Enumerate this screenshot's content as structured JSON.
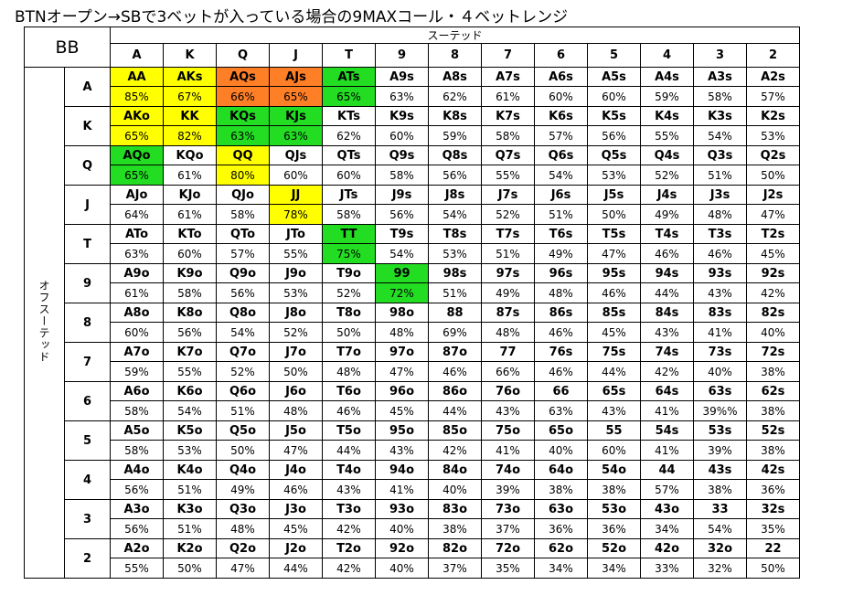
{
  "title": "BTNオープン→SBで3ベットが入っている場合の9MAXコール・４ベットレンジ",
  "corner_label": "BB",
  "suited_label": "スーテッド",
  "offsuit_label": "オフスーテッド",
  "ranks": [
    "A",
    "K",
    "Q",
    "J",
    "T",
    "9",
    "8",
    "7",
    "6",
    "5",
    "4",
    "3",
    "2"
  ],
  "colors": {
    "y": "#ffff00",
    "o": "#ff7f27",
    "g": "#22dd22"
  },
  "rows": [
    {
      "rank": "A",
      "cells": [
        {
          "hand": "AA",
          "pct": "85%",
          "color": "y"
        },
        {
          "hand": "AKs",
          "pct": "67%",
          "color": "y"
        },
        {
          "hand": "AQs",
          "pct": "66%",
          "color": "o"
        },
        {
          "hand": "AJs",
          "pct": "65%",
          "color": "o"
        },
        {
          "hand": "ATs",
          "pct": "65%",
          "color": "g"
        },
        {
          "hand": "A9s",
          "pct": "63%"
        },
        {
          "hand": "A8s",
          "pct": "62%"
        },
        {
          "hand": "A7s",
          "pct": "61%"
        },
        {
          "hand": "A6s",
          "pct": "60%"
        },
        {
          "hand": "A5s",
          "pct": "60%"
        },
        {
          "hand": "A4s",
          "pct": "59%"
        },
        {
          "hand": "A3s",
          "pct": "58%"
        },
        {
          "hand": "A2s",
          "pct": "57%"
        }
      ]
    },
    {
      "rank": "K",
      "cells": [
        {
          "hand": "AKo",
          "pct": "65%",
          "color": "y"
        },
        {
          "hand": "KK",
          "pct": "82%",
          "color": "y"
        },
        {
          "hand": "KQs",
          "pct": "63%",
          "color": "g"
        },
        {
          "hand": "KJs",
          "pct": "63%",
          "color": "g"
        },
        {
          "hand": "KTs",
          "pct": "62%"
        },
        {
          "hand": "K9s",
          "pct": "60%"
        },
        {
          "hand": "K8s",
          "pct": "59%"
        },
        {
          "hand": "K7s",
          "pct": "58%"
        },
        {
          "hand": "K6s",
          "pct": "57%"
        },
        {
          "hand": "K5s",
          "pct": "56%"
        },
        {
          "hand": "K4s",
          "pct": "55%"
        },
        {
          "hand": "K3s",
          "pct": "54%"
        },
        {
          "hand": "K2s",
          "pct": "53%"
        }
      ]
    },
    {
      "rank": "Q",
      "cells": [
        {
          "hand": "AQo",
          "pct": "65%",
          "color": "g"
        },
        {
          "hand": "KQo",
          "pct": "61%"
        },
        {
          "hand": "QQ",
          "pct": "80%",
          "color": "y"
        },
        {
          "hand": "QJs",
          "pct": "60%"
        },
        {
          "hand": "QTs",
          "pct": "60%"
        },
        {
          "hand": "Q9s",
          "pct": "58%"
        },
        {
          "hand": "Q8s",
          "pct": "56%"
        },
        {
          "hand": "Q7s",
          "pct": "55%"
        },
        {
          "hand": "Q6s",
          "pct": "54%"
        },
        {
          "hand": "Q5s",
          "pct": "53%"
        },
        {
          "hand": "Q4s",
          "pct": "52%"
        },
        {
          "hand": "Q3s",
          "pct": "51%"
        },
        {
          "hand": "Q2s",
          "pct": "50%"
        }
      ]
    },
    {
      "rank": "J",
      "cells": [
        {
          "hand": "AJo",
          "pct": "64%"
        },
        {
          "hand": "KJo",
          "pct": "61%"
        },
        {
          "hand": "QJo",
          "pct": "58%"
        },
        {
          "hand": "JJ",
          "pct": "78%",
          "color": "y"
        },
        {
          "hand": "JTs",
          "pct": "58%"
        },
        {
          "hand": "J9s",
          "pct": "56%"
        },
        {
          "hand": "J8s",
          "pct": "54%"
        },
        {
          "hand": "J7s",
          "pct": "52%"
        },
        {
          "hand": "J6s",
          "pct": "51%"
        },
        {
          "hand": "J5s",
          "pct": "50%"
        },
        {
          "hand": "J4s",
          "pct": "49%"
        },
        {
          "hand": "J3s",
          "pct": "48%"
        },
        {
          "hand": "J2s",
          "pct": "47%"
        }
      ]
    },
    {
      "rank": "T",
      "cells": [
        {
          "hand": "ATo",
          "pct": "63%"
        },
        {
          "hand": "KTo",
          "pct": "60%"
        },
        {
          "hand": "QTo",
          "pct": "57%"
        },
        {
          "hand": "JTo",
          "pct": "55%"
        },
        {
          "hand": "TT",
          "pct": "75%",
          "color": "g"
        },
        {
          "hand": "T9s",
          "pct": "54%"
        },
        {
          "hand": "T8s",
          "pct": "53%"
        },
        {
          "hand": "T7s",
          "pct": "51%"
        },
        {
          "hand": "T6s",
          "pct": "49%"
        },
        {
          "hand": "T5s",
          "pct": "47%"
        },
        {
          "hand": "T4s",
          "pct": "46%"
        },
        {
          "hand": "T3s",
          "pct": "46%"
        },
        {
          "hand": "T2s",
          "pct": "45%"
        }
      ]
    },
    {
      "rank": "9",
      "cells": [
        {
          "hand": "A9o",
          "pct": "61%"
        },
        {
          "hand": "K9o",
          "pct": "58%"
        },
        {
          "hand": "Q9o",
          "pct": "56%"
        },
        {
          "hand": "J9o",
          "pct": "53%"
        },
        {
          "hand": "T9o",
          "pct": "52%"
        },
        {
          "hand": "99",
          "pct": "72%",
          "color": "g"
        },
        {
          "hand": "98s",
          "pct": "51%"
        },
        {
          "hand": "97s",
          "pct": "49%"
        },
        {
          "hand": "96s",
          "pct": "48%"
        },
        {
          "hand": "95s",
          "pct": "46%"
        },
        {
          "hand": "94s",
          "pct": "44%"
        },
        {
          "hand": "93s",
          "pct": "43%"
        },
        {
          "hand": "92s",
          "pct": "42%"
        }
      ]
    },
    {
      "rank": "8",
      "cells": [
        {
          "hand": "A8o",
          "pct": "60%"
        },
        {
          "hand": "K8o",
          "pct": "56%"
        },
        {
          "hand": "Q8o",
          "pct": "54%"
        },
        {
          "hand": "J8o",
          "pct": "52%"
        },
        {
          "hand": "T8o",
          "pct": "50%"
        },
        {
          "hand": "98o",
          "pct": "48%"
        },
        {
          "hand": "88",
          "pct": "69%"
        },
        {
          "hand": "87s",
          "pct": "48%"
        },
        {
          "hand": "86s",
          "pct": "46%"
        },
        {
          "hand": "85s",
          "pct": "45%"
        },
        {
          "hand": "84s",
          "pct": "43%"
        },
        {
          "hand": "83s",
          "pct": "41%"
        },
        {
          "hand": "82s",
          "pct": "40%"
        }
      ]
    },
    {
      "rank": "7",
      "cells": [
        {
          "hand": "A7o",
          "pct": "59%"
        },
        {
          "hand": "K7o",
          "pct": "55%"
        },
        {
          "hand": "Q7o",
          "pct": "52%"
        },
        {
          "hand": "J7o",
          "pct": "50%"
        },
        {
          "hand": "T7o",
          "pct": "48%"
        },
        {
          "hand": "97o",
          "pct": "47%"
        },
        {
          "hand": "87o",
          "pct": "46%"
        },
        {
          "hand": "77",
          "pct": "66%"
        },
        {
          "hand": "76s",
          "pct": "46%"
        },
        {
          "hand": "75s",
          "pct": "44%"
        },
        {
          "hand": "74s",
          "pct": "42%"
        },
        {
          "hand": "73s",
          "pct": "40%"
        },
        {
          "hand": "72s",
          "pct": "38%"
        }
      ]
    },
    {
      "rank": "6",
      "cells": [
        {
          "hand": "A6o",
          "pct": "58%"
        },
        {
          "hand": "K6o",
          "pct": "54%"
        },
        {
          "hand": "Q6o",
          "pct": "51%"
        },
        {
          "hand": "J6o",
          "pct": "48%"
        },
        {
          "hand": "T6o",
          "pct": "46%"
        },
        {
          "hand": "96o",
          "pct": "45%"
        },
        {
          "hand": "86o",
          "pct": "44%"
        },
        {
          "hand": "76o",
          "pct": "43%"
        },
        {
          "hand": "66",
          "pct": "63%"
        },
        {
          "hand": "65s",
          "pct": "43%"
        },
        {
          "hand": "64s",
          "pct": "41%"
        },
        {
          "hand": "63s",
          "pct": "39%%"
        },
        {
          "hand": "62s",
          "pct": "38%"
        }
      ]
    },
    {
      "rank": "5",
      "cells": [
        {
          "hand": "A5o",
          "pct": "58%"
        },
        {
          "hand": "K5o",
          "pct": "53%"
        },
        {
          "hand": "Q5o",
          "pct": "50%"
        },
        {
          "hand": "J5o",
          "pct": "47%"
        },
        {
          "hand": "T5o",
          "pct": "44%"
        },
        {
          "hand": "95o",
          "pct": "43%"
        },
        {
          "hand": "85o",
          "pct": "42%"
        },
        {
          "hand": "75o",
          "pct": "41%"
        },
        {
          "hand": "65o",
          "pct": "40%"
        },
        {
          "hand": "55",
          "pct": "60%"
        },
        {
          "hand": "54s",
          "pct": "41%"
        },
        {
          "hand": "53s",
          "pct": "39%"
        },
        {
          "hand": "52s",
          "pct": "38%"
        }
      ]
    },
    {
      "rank": "4",
      "cells": [
        {
          "hand": "A4o",
          "pct": "56%"
        },
        {
          "hand": "K4o",
          "pct": "51%"
        },
        {
          "hand": "Q4o",
          "pct": "49%"
        },
        {
          "hand": "J4o",
          "pct": "46%"
        },
        {
          "hand": "T4o",
          "pct": "43%"
        },
        {
          "hand": "94o",
          "pct": "41%"
        },
        {
          "hand": "84o",
          "pct": "40%"
        },
        {
          "hand": "74o",
          "pct": "39%"
        },
        {
          "hand": "64o",
          "pct": "38%"
        },
        {
          "hand": "54o",
          "pct": "38%"
        },
        {
          "hand": "44",
          "pct": "57%"
        },
        {
          "hand": "43s",
          "pct": "38%"
        },
        {
          "hand": "42s",
          "pct": "36%"
        }
      ]
    },
    {
      "rank": "3",
      "cells": [
        {
          "hand": "A3o",
          "pct": "56%"
        },
        {
          "hand": "K3o",
          "pct": "51%"
        },
        {
          "hand": "Q3o",
          "pct": "48%"
        },
        {
          "hand": "J3o",
          "pct": "45%"
        },
        {
          "hand": "T3o",
          "pct": "42%"
        },
        {
          "hand": "93o",
          "pct": "40%"
        },
        {
          "hand": "83o",
          "pct": "38%"
        },
        {
          "hand": "73o",
          "pct": "37%"
        },
        {
          "hand": "63o",
          "pct": "36%"
        },
        {
          "hand": "53o",
          "pct": "36%"
        },
        {
          "hand": "43o",
          "pct": "34%"
        },
        {
          "hand": "33",
          "pct": "54%"
        },
        {
          "hand": "32s",
          "pct": "35%"
        }
      ]
    },
    {
      "rank": "2",
      "cells": [
        {
          "hand": "A2o",
          "pct": "55%"
        },
        {
          "hand": "K2o",
          "pct": "50%"
        },
        {
          "hand": "Q2o",
          "pct": "47%"
        },
        {
          "hand": "J2o",
          "pct": "44%"
        },
        {
          "hand": "T2o",
          "pct": "42%"
        },
        {
          "hand": "92o",
          "pct": "40%"
        },
        {
          "hand": "82o",
          "pct": "37%"
        },
        {
          "hand": "72o",
          "pct": "35%"
        },
        {
          "hand": "62o",
          "pct": "34%"
        },
        {
          "hand": "52o",
          "pct": "34%"
        },
        {
          "hand": "42o",
          "pct": "33%"
        },
        {
          "hand": "32o",
          "pct": "32%"
        },
        {
          "hand": "22",
          "pct": "50%"
        }
      ]
    }
  ]
}
